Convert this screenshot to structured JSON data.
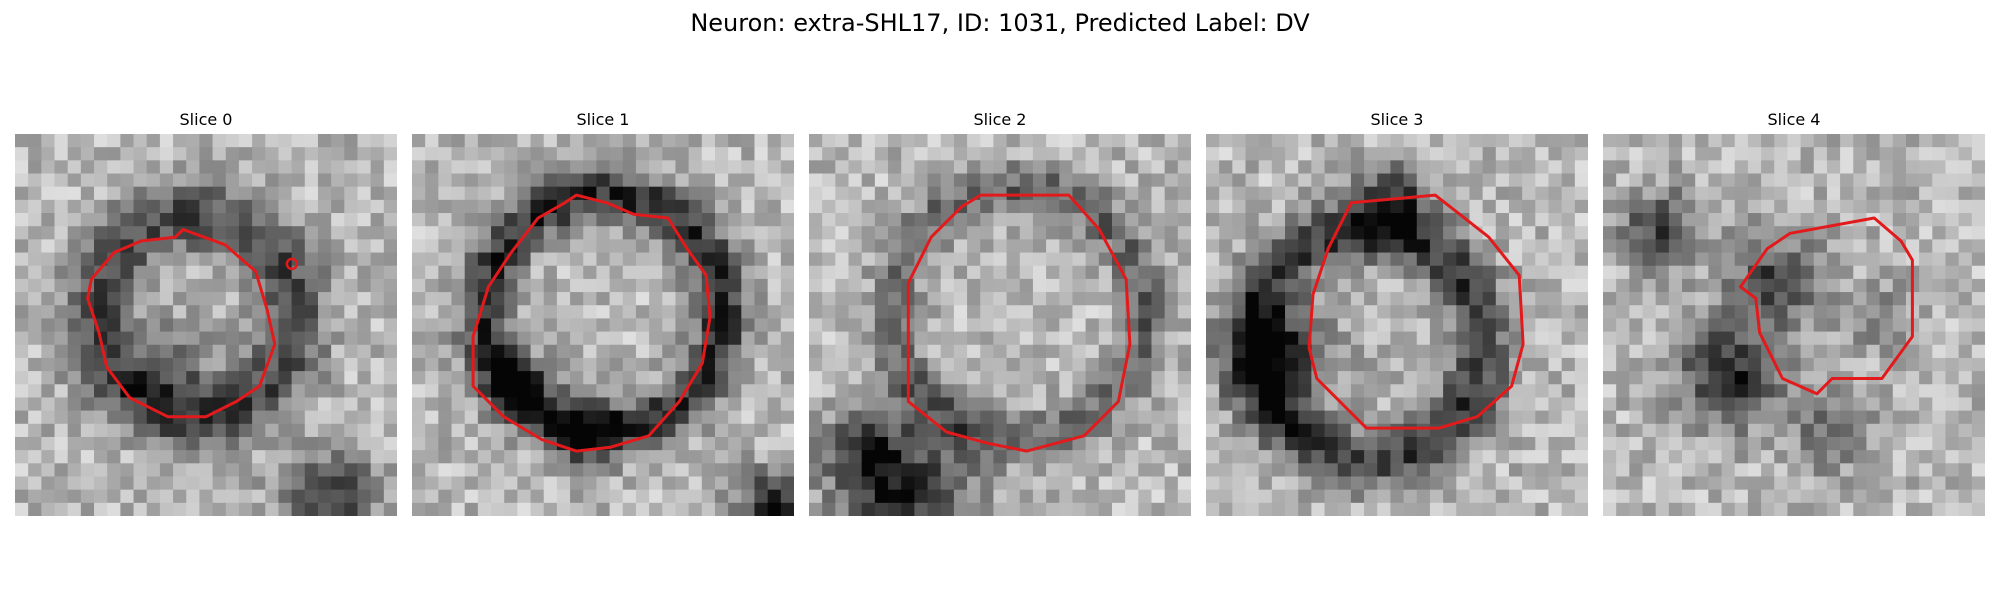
{
  "figure": {
    "title": "Neuron: extra-SHL17, ID: 1031, Predicted Label: DV"
  },
  "panels": [
    {
      "title": "Slice 0"
    },
    {
      "title": "Slice 1"
    },
    {
      "title": "Slice 2"
    },
    {
      "title": "Slice 3"
    },
    {
      "title": "Slice 4"
    }
  ],
  "colors": {
    "contour": "#e31a1c",
    "background": "#ffffff"
  }
}
